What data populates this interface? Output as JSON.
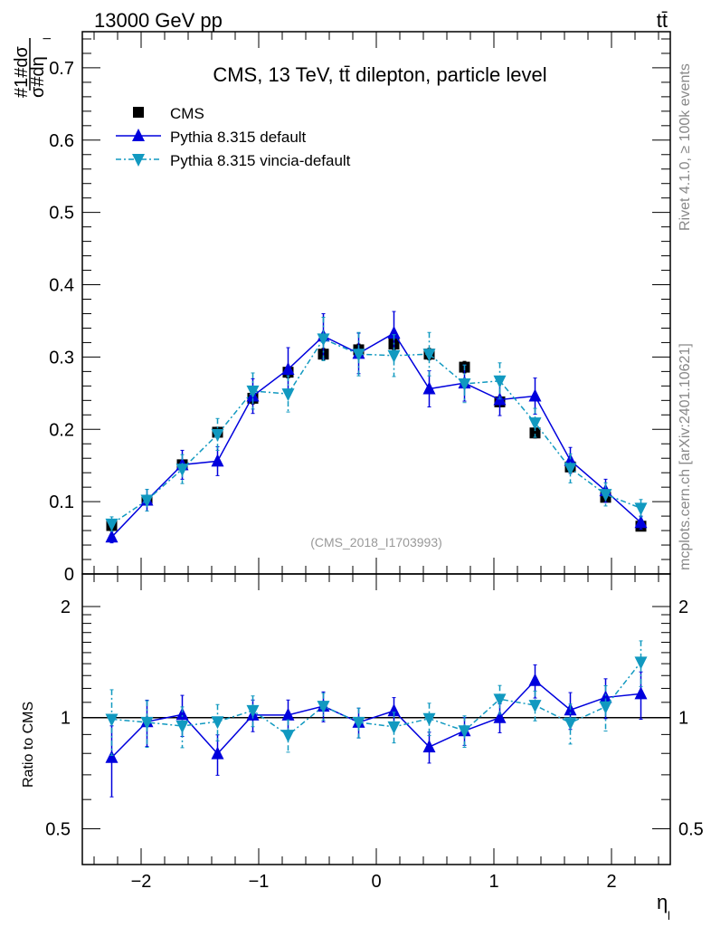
{
  "header": {
    "energy_label": "13000 GeV pp",
    "process_label": "tt̄",
    "rivet_label": "Rivet 4.1.0, ≥ 100k events",
    "source_label": "mcplots.cern.ch [arXiv:2401.10621]",
    "analysis_label": "(CMS_2018_I1703993)"
  },
  "chart_data": [
    {
      "type": "line",
      "title": "CMS, 13 TeV, tt̄ dilepton, particle level",
      "ylabel_num": "#1#dσ",
      "ylabel_den": "σ#dη",
      "ylabel_sub": "l",
      "xlabel": "η",
      "xlabel_sub": "l",
      "xlim": [
        -2.5,
        2.5
      ],
      "ylim": [
        0,
        0.75
      ],
      "yticks": [
        "0",
        "0.1",
        "0.2",
        "0.3",
        "0.4",
        "0.5",
        "0.6",
        "0.7"
      ],
      "ytick_values": [
        0,
        0.1,
        0.2,
        0.3,
        0.4,
        0.5,
        0.6,
        0.7
      ],
      "legend_placement": "top-left",
      "x": [
        -2.25,
        -1.95,
        -1.65,
        -1.35,
        -1.05,
        -0.75,
        -0.45,
        -0.15,
        0.15,
        0.45,
        0.75,
        1.05,
        1.35,
        1.65,
        1.95,
        2.25
      ],
      "series": [
        {
          "name": "CMS",
          "marker": "square",
          "color": "#000000",
          "values": [
            0.067,
            0.102,
            0.151,
            0.196,
            0.243,
            0.279,
            0.304,
            0.31,
            0.318,
            0.304,
            0.286,
            0.238,
            0.195,
            0.148,
            0.106,
            0.066
          ],
          "errors": [
            0.004,
            0.005,
            0.006,
            0.007,
            0.008,
            0.008,
            0.008,
            0.008,
            0.008,
            0.008,
            0.008,
            0.007,
            0.007,
            0.006,
            0.005,
            0.004
          ]
        },
        {
          "name": "Pythia 8.315 default",
          "marker": "triangle-up",
          "color": "#0000dd",
          "line": "solid",
          "values": [
            0.051,
            0.102,
            0.151,
            0.156,
            0.246,
            0.283,
            0.329,
            0.305,
            0.333,
            0.256,
            0.264,
            0.241,
            0.246,
            0.157,
            0.115,
            0.071
          ],
          "errors": [
            0.008,
            0.015,
            0.02,
            0.02,
            0.024,
            0.03,
            0.031,
            0.028,
            0.03,
            0.025,
            0.025,
            0.022,
            0.025,
            0.018,
            0.016,
            0.009
          ]
        },
        {
          "name": "Pythia 8.315 vincia-default",
          "marker": "triangle-down",
          "color": "#1199c0",
          "line": "dashdot",
          "values": [
            0.069,
            0.102,
            0.145,
            0.193,
            0.253,
            0.249,
            0.325,
            0.304,
            0.302,
            0.304,
            0.263,
            0.267,
            0.209,
            0.146,
            0.11,
            0.091
          ],
          "errors": [
            0.01,
            0.015,
            0.02,
            0.022,
            0.025,
            0.025,
            0.03,
            0.03,
            0.029,
            0.03,
            0.026,
            0.025,
            0.02,
            0.02,
            0.016,
            0.012
          ]
        }
      ]
    },
    {
      "type": "line",
      "ylabel": "Ratio to CMS",
      "yscale": "log",
      "ylim": [
        0.4,
        2.45
      ],
      "yticks": [
        "0.5",
        "1",
        "2"
      ],
      "ytick_values": [
        0.5,
        1,
        2
      ],
      "xticks": [
        "−2",
        "−1",
        "0",
        "1",
        "2"
      ],
      "xtick_values": [
        -2,
        -1,
        0,
        1,
        2
      ],
      "x": [
        -2.25,
        -1.95,
        -1.65,
        -1.35,
        -1.05,
        -0.75,
        -0.45,
        -0.15,
        0.15,
        0.45,
        0.75,
        1.05,
        1.35,
        1.65,
        1.95,
        2.25
      ],
      "series": [
        {
          "name": "Pythia 8.315 default",
          "color": "#0000dd",
          "values": [
            0.78,
            0.975,
            1.019,
            0.798,
            1.016,
            1.016,
            1.074,
            0.971,
            1.043,
            0.833,
            0.921,
            1.0,
            1.26,
            1.049,
            1.134,
            1.16
          ],
          "errors": [
            0.17,
            0.14,
            0.13,
            0.1,
            0.1,
            0.1,
            0.1,
            0.09,
            0.09,
            0.08,
            0.08,
            0.09,
            0.13,
            0.12,
            0.14,
            0.17
          ]
        },
        {
          "name": "Pythia 8.315 vincia-default",
          "color": "#1199c0",
          "values": [
            0.99,
            0.971,
            0.949,
            0.975,
            1.045,
            0.896,
            1.074,
            0.971,
            0.944,
            0.994,
            0.921,
            1.122,
            1.08,
            0.968,
            1.07,
            1.414
          ],
          "errors": [
            0.2,
            0.14,
            0.12,
            0.11,
            0.1,
            0.09,
            0.09,
            0.09,
            0.09,
            0.1,
            0.09,
            0.1,
            0.1,
            0.12,
            0.15,
            0.2
          ]
        }
      ]
    }
  ]
}
